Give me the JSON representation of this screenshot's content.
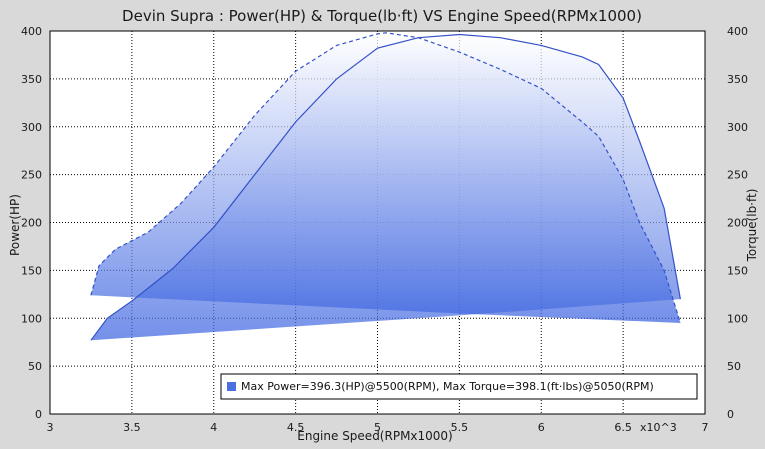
{
  "chart_data": {
    "type": "area",
    "title": "Devin Supra : Power(HP) & Torque(lb·ft) VS Engine Speed(RPMx1000)",
    "xlabel": "Engine Speed(RPMx1000)",
    "ylabel_left": "Power(HP)",
    "ylabel_right": "Torque(lb·ft)",
    "x_multiplier_label": "x10^3",
    "xlim": [
      3,
      7
    ],
    "ylim": [
      0,
      400
    ],
    "x_ticks": [
      "3",
      "3.5",
      "4",
      "4.5",
      "5",
      "5.5",
      "6",
      "6.5",
      "7"
    ],
    "y_ticks": [
      "0",
      "50",
      "100",
      "150",
      "200",
      "250",
      "300",
      "350",
      "400"
    ],
    "grid": true,
    "legend_position": "bottom-right",
    "legend_text": "Max Power=396.3(HP)@5500(RPM), Max Torque=398.1(ft·lbs)@5050(RPM)",
    "colors": {
      "fill_dark": "#3b63e0",
      "fill_light": "#ffffff",
      "line": "#3552c8",
      "legend_swatch": "#4a6fe0"
    },
    "series": [
      {
        "name": "Power",
        "style": "solid",
        "x": [
          3.25,
          3.35,
          3.5,
          3.75,
          4.0,
          4.25,
          4.5,
          4.75,
          5.0,
          5.25,
          5.5,
          5.75,
          6.0,
          6.25,
          6.35,
          6.5,
          6.6,
          6.75,
          6.85
        ],
        "y": [
          77,
          100,
          118,
          152,
          195,
          250,
          305,
          350,
          382,
          393,
          396.3,
          393,
          385,
          373,
          365,
          330,
          285,
          215,
          120
        ],
        "baseline": [
          [
            3.25,
            77
          ],
          [
            5.5,
            103
          ],
          [
            6.85,
            120
          ]
        ]
      },
      {
        "name": "Torque",
        "style": "dashed",
        "x": [
          3.25,
          3.3,
          3.4,
          3.6,
          3.8,
          4.0,
          4.25,
          4.5,
          4.75,
          5.0,
          5.05,
          5.25,
          5.5,
          5.75,
          6.0,
          6.25,
          6.35,
          6.5,
          6.6,
          6.75,
          6.85
        ],
        "y": [
          124,
          155,
          172,
          190,
          220,
          258,
          312,
          358,
          385,
          397,
          398.1,
          393,
          378,
          360,
          340,
          305,
          290,
          245,
          200,
          150,
          95
        ],
        "baseline": [
          [
            3.25,
            124
          ],
          [
            5.5,
            105
          ],
          [
            6.85,
            95
          ]
        ]
      }
    ]
  }
}
